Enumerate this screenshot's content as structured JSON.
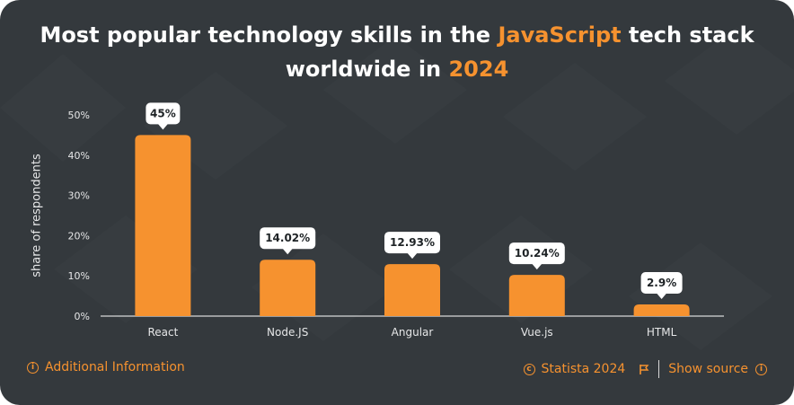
{
  "title": {
    "part1": "Most popular technology skills in the ",
    "highlight1": "JavaScript",
    "part2": " tech stack",
    "part3": "worldwide in ",
    "highlight2": "2024"
  },
  "colors": {
    "background": "#34393d",
    "bar": "#f6922f",
    "accent": "#f6922f",
    "text": "#ffffff"
  },
  "chart_data": {
    "type": "bar",
    "categories": [
      "React",
      "Node.JS",
      "Angular",
      "Vue.js",
      "HTML"
    ],
    "values": [
      45,
      14.02,
      12.93,
      10.24,
      2.9
    ],
    "data_labels": [
      "45%",
      "14.02%",
      "12.93%",
      "10.24%",
      "2.9%"
    ],
    "ylabel": "share of respondents",
    "ylim": [
      0,
      50
    ],
    "yticks": [
      0,
      10,
      20,
      30,
      40,
      50
    ],
    "ytick_labels": [
      "0%",
      "10%",
      "20%",
      "30%",
      "40%",
      "50%"
    ],
    "grid": false,
    "legend": "none"
  },
  "footer": {
    "additional_info": "Additional Information",
    "info_icon": "info-icon",
    "copyright": "Statista 2024",
    "copyright_icon": "copyright-icon",
    "flag_icon": "flag-icon",
    "show_source": "Show source",
    "source_icon": "info-icon"
  }
}
